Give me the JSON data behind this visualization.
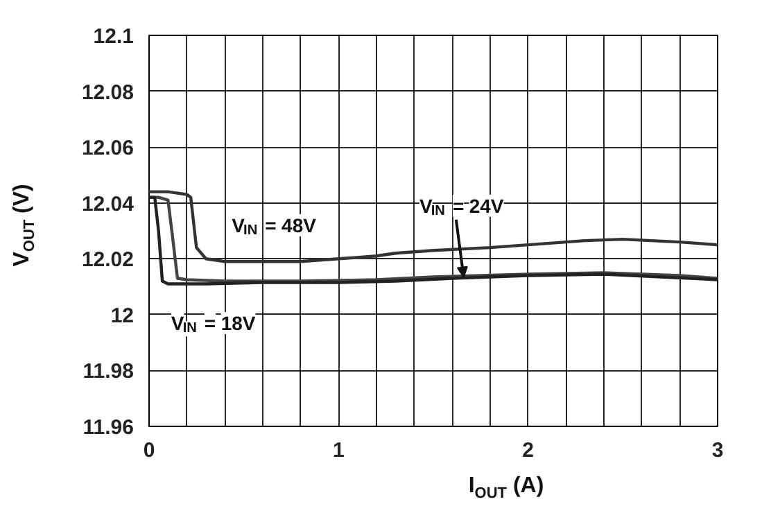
{
  "chart_data": {
    "type": "line",
    "xlabel": "I$_{OUT}$ (A)",
    "ylabel": "V$_{OUT}$ (V)",
    "xlim": [
      0,
      3
    ],
    "ylim": [
      11.96,
      12.1
    ],
    "xticks": [
      0,
      {
        "value": 0.2,
        "label": null
      },
      {
        "value": 0.4,
        "label": null
      },
      {
        "value": 0.6,
        "label": null
      },
      {
        "value": 0.8,
        "label": null
      },
      1,
      {
        "value": 1.2,
        "label": null
      },
      {
        "value": 1.4,
        "label": null
      },
      {
        "value": 1.6,
        "label": null
      },
      {
        "value": 1.8,
        "label": null
      },
      2,
      {
        "value": 2.2,
        "label": null
      },
      {
        "value": 2.4,
        "label": null
      },
      {
        "value": 2.6,
        "label": null
      },
      {
        "value": 2.8,
        "label": null
      },
      3
    ],
    "yticks": [
      11.96,
      11.98,
      12,
      12.02,
      12.04,
      12.06,
      12.08,
      12.1
    ],
    "grid": true,
    "marker": "none",
    "line_style": "solid",
    "series": [
      {
        "color": "#333333",
        "x": [
          0,
          0.1,
          0.2,
          0.22,
          0.25,
          0.3,
          0.4,
          0.6,
          0.8,
          1.0,
          1.2,
          1.3,
          1.5,
          1.8,
          2.0,
          2.3,
          2.5,
          2.8,
          3.0
        ],
        "values": [
          12.044,
          12.044,
          12.043,
          12.042,
          12.024,
          12.02,
          12.019,
          12.019,
          12.019,
          12.02,
          12.021,
          12.022,
          12.023,
          12.024,
          12.025,
          12.0265,
          12.027,
          12.026,
          12.025
        ]
      },
      {
        "color": "#444444",
        "x": [
          0,
          0.05,
          0.1,
          0.12,
          0.15,
          0.2,
          0.4,
          0.8,
          1.2,
          1.5,
          2.0,
          2.4,
          2.8,
          3.0
        ],
        "values": [
          12.042,
          12.042,
          12.041,
          12.03,
          12.013,
          12.0125,
          12.012,
          12.012,
          12.0125,
          12.0135,
          12.0145,
          12.015,
          12.014,
          12.013
        ]
      },
      {
        "color": "#222222",
        "x": [
          0,
          0.03,
          0.05,
          0.07,
          0.1,
          0.3,
          0.6,
          1.0,
          1.3,
          1.6,
          2.0,
          2.4,
          2.7,
          3.0
        ],
        "values": [
          12.042,
          12.042,
          12.03,
          12.012,
          12.011,
          12.011,
          12.0115,
          12.0115,
          12.012,
          12.013,
          12.014,
          12.0145,
          12.0135,
          12.0125
        ]
      }
    ],
    "annotations": [
      "V$_{IN}$ = 48V",
      "V$_{IN}$ = 18V",
      {
        "text": "V$_{IN}$ = 24V",
        "x": 1.66,
        "y": 12.0135
      }
    ]
  }
}
